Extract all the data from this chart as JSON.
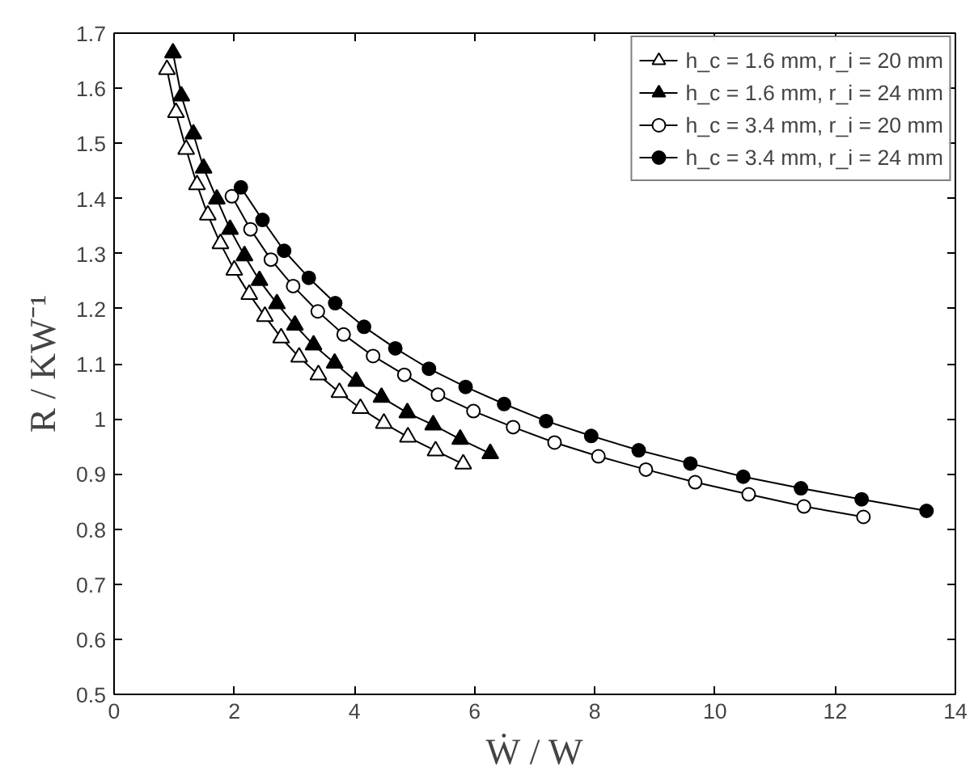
{
  "chart_data": {
    "type": "line",
    "xlabel": "Ẇ / W",
    "ylabel": "R / KW⁻¹",
    "xlim": [
      0,
      14
    ],
    "ylim": [
      0.5,
      1.7
    ],
    "xticks": [
      0,
      2,
      4,
      6,
      8,
      10,
      12,
      14
    ],
    "yticks": [
      0.5,
      0.6,
      0.7,
      0.8,
      0.9,
      1,
      1.1,
      1.2,
      1.3,
      1.4,
      1.5,
      1.6,
      1.7
    ],
    "grid": false,
    "legend": "top right",
    "line_style": "solid",
    "series": [
      {
        "name": "h_c = 1.6 mm, r_i = 20 mm",
        "color": "#ffffff",
        "marker": "triangle",
        "x": [
          0.88,
          1.03,
          1.2,
          1.38,
          1.56,
          1.77,
          2.0,
          2.25,
          2.51,
          2.78,
          3.08,
          3.4,
          3.75,
          4.1,
          4.49,
          4.89,
          5.35,
          5.81
        ],
        "values": [
          1.634,
          1.556,
          1.489,
          1.425,
          1.37,
          1.318,
          1.27,
          1.226,
          1.186,
          1.147,
          1.112,
          1.08,
          1.048,
          1.019,
          0.992,
          0.967,
          0.942,
          0.918
        ]
      },
      {
        "name": "h_c = 1.6 mm, r_i = 24 mm",
        "color": "#000000",
        "marker": "triangle",
        "x": [
          0.98,
          1.12,
          1.32,
          1.49,
          1.71,
          1.93,
          2.17,
          2.42,
          2.71,
          3.01,
          3.32,
          3.67,
          4.03,
          4.45,
          4.88,
          5.31,
          5.76,
          6.26
        ],
        "values": [
          1.664,
          1.586,
          1.517,
          1.455,
          1.399,
          1.344,
          1.296,
          1.251,
          1.209,
          1.17,
          1.134,
          1.101,
          1.068,
          1.039,
          1.011,
          0.989,
          0.963,
          0.937
        ]
      },
      {
        "name": "h_c = 3.4 mm, r_i = 20 mm",
        "color": "#ffffff",
        "marker": "circle",
        "x": [
          1.96,
          2.27,
          2.61,
          2.98,
          3.39,
          3.82,
          4.31,
          4.83,
          5.39,
          5.98,
          6.64,
          7.33,
          8.06,
          8.85,
          9.67,
          10.56,
          11.48,
          12.47
        ],
        "values": [
          1.404,
          1.344,
          1.289,
          1.241,
          1.195,
          1.153,
          1.114,
          1.08,
          1.044,
          1.014,
          0.985,
          0.957,
          0.932,
          0.908,
          0.885,
          0.863,
          0.841,
          0.822
        ]
      },
      {
        "name": "h_c = 3.4 mm, r_i = 24 mm",
        "color": "#000000",
        "marker": "circle",
        "x": [
          2.11,
          2.47,
          2.83,
          3.24,
          3.68,
          4.16,
          4.68,
          5.24,
          5.85,
          6.49,
          7.19,
          7.94,
          8.73,
          9.59,
          10.47,
          11.43,
          12.44,
          13.52
        ],
        "values": [
          1.42,
          1.361,
          1.305,
          1.256,
          1.21,
          1.167,
          1.128,
          1.091,
          1.058,
          1.027,
          0.996,
          0.969,
          0.943,
          0.919,
          0.895,
          0.874,
          0.854,
          0.833
        ]
      }
    ]
  }
}
